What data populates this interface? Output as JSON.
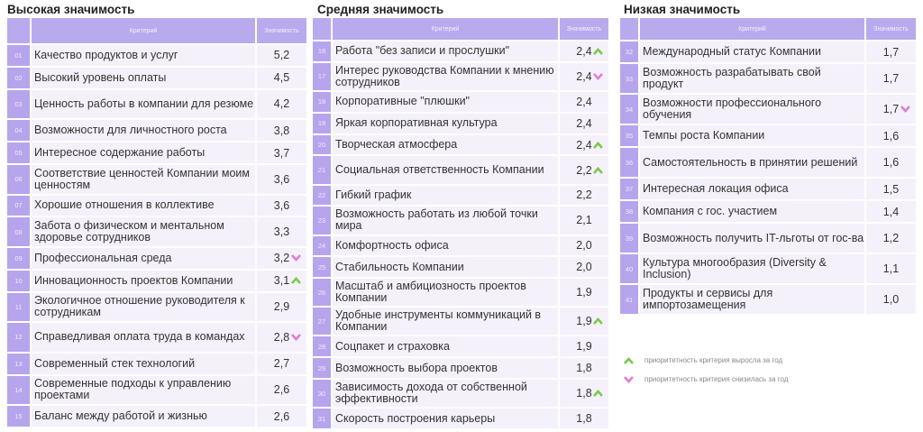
{
  "colors": {
    "up": "#7cc94a",
    "down": "#dc7fd6",
    "header": "#b9aaee"
  },
  "tables": [
    {
      "title": "Высокая значимость",
      "col_criterion": "Критерий",
      "col_value": "Значимость",
      "rows": [
        {
          "n": "01",
          "c": "Качество продуктов и услуг",
          "v": "5,2"
        },
        {
          "n": "02",
          "c": "Высокий уровень оплаты",
          "v": "4,5"
        },
        {
          "n": "03",
          "c": "Ценность работы в компании для резюме",
          "v": "4,2",
          "d": true
        },
        {
          "n": "04",
          "c": "Возможности для личностного роста",
          "v": "3,8"
        },
        {
          "n": "05",
          "c": "Интересное содержание работы",
          "v": "3,7"
        },
        {
          "n": "06",
          "c": "Соответствие ценностей Компании моим ценностям",
          "v": "3,6",
          "d": true
        },
        {
          "n": "07",
          "c": "Хорошие отношения в коллективе",
          "v": "3,6"
        },
        {
          "n": "08",
          "c": "Забота о физическом и ментальном здоровье сотрудников",
          "v": "3,3",
          "d": true
        },
        {
          "n": "09",
          "c": "Профессиональная среда",
          "v": "3,2",
          "t": "down"
        },
        {
          "n": "10",
          "c": "Инновационность проектов Компании",
          "v": "3,1",
          "t": "up"
        },
        {
          "n": "11",
          "c": "Экологичное отношение руководителя к сотрудникам",
          "v": "2,9",
          "d": true
        },
        {
          "n": "12",
          "c": "Справедливая оплата труда в командах",
          "v": "2,8",
          "t": "down",
          "d": true
        },
        {
          "n": "13",
          "c": "Современный стек технологий",
          "v": "2,7"
        },
        {
          "n": "14",
          "c": "Современные подходы к управлению проектами",
          "v": "2,6",
          "d": true
        },
        {
          "n": "15",
          "c": "Баланс между работой и жизнью",
          "v": "2,6"
        }
      ]
    },
    {
      "title": "Средняя значимость",
      "col_criterion": "Критерий",
      "col_value": "Значимость",
      "rows": [
        {
          "n": "16",
          "c": "Работа \"без записи и прослушки\"",
          "v": "2,4",
          "t": "up"
        },
        {
          "n": "17",
          "c": "Интерес руководства Компании к мнению сотрудников",
          "v": "2,4",
          "t": "down",
          "d": true
        },
        {
          "n": "18",
          "c": "Корпоративные \"плюшки\"",
          "v": "2,4"
        },
        {
          "n": "19",
          "c": "Яркая корпоративная культура",
          "v": "2,4"
        },
        {
          "n": "20",
          "c": "Творческая атмосфера",
          "v": "2,4",
          "t": "up"
        },
        {
          "n": "21",
          "c": "Социальная ответственность Компании",
          "v": "2,2",
          "t": "up",
          "d": true
        },
        {
          "n": "22",
          "c": "Гибкий график",
          "v": "2,2"
        },
        {
          "n": "23",
          "c": "Возможность работать из любой точки мира",
          "v": "2,1",
          "d": true
        },
        {
          "n": "24",
          "c": "Комфортность офиса",
          "v": "2,0"
        },
        {
          "n": "25",
          "c": "Стабильность Компании",
          "v": "2,0"
        },
        {
          "n": "26",
          "c": "Масштаб и амбициозность проектов Компании",
          "v": "1,9",
          "d": true
        },
        {
          "n": "27",
          "c": "Удобные инструменты коммуникаций в Компании",
          "v": "1,9",
          "t": "up",
          "d": true
        },
        {
          "n": "28",
          "c": "Соцпакет и страховка",
          "v": "1,9"
        },
        {
          "n": "29",
          "c": "Возможность выбора проектов",
          "v": "1,8"
        },
        {
          "n": "30",
          "c": "Зависимость дохода от собственной эффективности",
          "v": "1,8",
          "t": "up",
          "d": true
        },
        {
          "n": "31",
          "c": "Скорость построения карьеры",
          "v": "1,8"
        }
      ]
    },
    {
      "title": "Низкая значимость",
      "col_criterion": "Критерий",
      "col_value": "Значимость",
      "rows": [
        {
          "n": "32",
          "c": "Международный статус Компании",
          "v": "1,7"
        },
        {
          "n": "33",
          "c": "Возможность разрабатывать свой продукт",
          "v": "1,7",
          "d": true
        },
        {
          "n": "34",
          "c": "Возможности профессионального обучения",
          "v": "1,7",
          "t": "down",
          "d": true
        },
        {
          "n": "35",
          "c": "Темпы роста Компании",
          "v": "1,6"
        },
        {
          "n": "36",
          "c": "Самостоятельность в принятии решений",
          "v": "1,6",
          "d": true
        },
        {
          "n": "37",
          "c": "Интересная локация офиса",
          "v": "1,5"
        },
        {
          "n": "38",
          "c": "Компания с гос. участием",
          "v": "1,4"
        },
        {
          "n": "39",
          "c": "Возможность получить IT-льготы от гос-ва",
          "v": "1,2",
          "d": true
        },
        {
          "n": "40",
          "c": "Культура многообразия (Diversity & Inclusion)",
          "v": "1,1",
          "d": true
        },
        {
          "n": "41",
          "c": "Продукты и сервисы для импортозамещения",
          "v": "1,0",
          "d": true
        }
      ]
    }
  ],
  "legend": {
    "up": "приоритетность критерия выросла за год",
    "down": "приоритетность критерия снизилась за год"
  }
}
